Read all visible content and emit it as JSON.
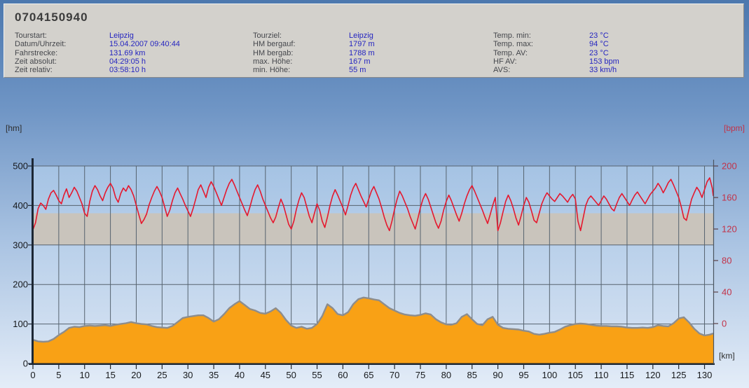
{
  "header": {
    "title": "0704150940",
    "columns": [
      {
        "rows": [
          {
            "label": "Tourstart:",
            "value": "Leipzig"
          },
          {
            "label": "Datum/Uhrzeit:",
            "value": "15.04.2007 09:40:44"
          },
          {
            "label": "Fahrstrecke:",
            "value": "131.69 km"
          },
          {
            "label": "Zeit absolut:",
            "value": "04:29:05 h"
          },
          {
            "label": "Zeit relativ:",
            "value": "03:58:10 h"
          }
        ]
      },
      {
        "rows": [
          {
            "label": "Tourziel:",
            "value": "Leipzig"
          },
          {
            "label": "HM bergauf:",
            "value": "1797 m"
          },
          {
            "label": "HM bergab:",
            "value": "1788 m"
          },
          {
            "label": "max. Höhe:",
            "value": "167 m"
          },
          {
            "label": "min. Höhe:",
            "value": "55 m"
          }
        ]
      },
      {
        "rows": [
          {
            "label": "Temp. min:",
            "value": "23 °C"
          },
          {
            "label": "Temp. max:",
            "value": "94 °C"
          },
          {
            "label": "Temp. AV:",
            "value": "23 °C"
          },
          {
            "label": "HF AV:",
            "value": "153 bpm"
          },
          {
            "label": "AVS:",
            "value": "33 km/h"
          }
        ]
      }
    ]
  },
  "chart_data": {
    "type": "line",
    "title": "",
    "grid": true,
    "x_axis": {
      "label": "[km]",
      "min": 0,
      "max": 131.69,
      "tick_step": 5,
      "tick_max": 130
    },
    "y_left": {
      "label": "[hm]",
      "min": 0,
      "max": 500,
      "tick_step": 100
    },
    "y_right": {
      "label": "[bpm]",
      "min": 0,
      "max": 200,
      "tick_step": 40
    },
    "hr_zone_band": {
      "axis": "right",
      "from_bpm": 100,
      "to_bpm": 140
    },
    "series": [
      {
        "name": "elevation",
        "axis": "left",
        "unit": "m",
        "x_step_km": 1,
        "x_end_km": 131.69,
        "values": [
          60,
          56,
          55,
          56,
          62,
          72,
          80,
          90,
          93,
          92,
          95,
          96,
          95,
          96,
          97,
          95,
          98,
          100,
          102,
          105,
          102,
          100,
          99,
          95,
          92,
          91,
          90,
          95,
          105,
          115,
          118,
          120,
          122,
          122,
          115,
          106,
          112,
          125,
          140,
          150,
          158,
          148,
          138,
          134,
          128,
          126,
          132,
          140,
          128,
          110,
          96,
          90,
          93,
          88,
          90,
          100,
          120,
          150,
          140,
          125,
          122,
          130,
          150,
          163,
          167,
          165,
          162,
          160,
          150,
          140,
          134,
          128,
          124,
          122,
          121,
          123,
          127,
          124,
          112,
          104,
          99,
          98,
          102,
          118,
          125,
          112,
          100,
          97,
          112,
          118,
          98,
          90,
          88,
          87,
          86,
          83,
          81,
          75,
          73,
          75,
          78,
          80,
          86,
          93,
          97,
          100,
          101,
          100,
          98,
          96,
          95,
          95,
          94,
          94,
          93,
          91,
          90,
          90,
          91,
          90,
          92,
          97,
          95,
          94,
          102,
          114,
          117,
          104,
          88,
          76,
          71,
          73,
          76
        ]
      },
      {
        "name": "heart_rate",
        "axis": "right",
        "unit": "bpm",
        "x_step_km": 0.5,
        "x_end_km": 131.69,
        "values": [
          119,
          128,
          146,
          153,
          150,
          145,
          158,
          166,
          169,
          163,
          156,
          152,
          163,
          171,
          160,
          166,
          173,
          168,
          160,
          152,
          140,
          136,
          155,
          168,
          175,
          170,
          162,
          156,
          166,
          173,
          178,
          172,
          160,
          154,
          165,
          172,
          168,
          175,
          170,
          162,
          150,
          138,
          127,
          132,
          139,
          151,
          160,
          168,
          174,
          168,
          160,
          148,
          136,
          144,
          156,
          166,
          172,
          165,
          158,
          150,
          143,
          136,
          146,
          158,
          170,
          176,
          168,
          160,
          173,
          180,
          174,
          166,
          158,
          150,
          160,
          170,
          178,
          183,
          176,
          168,
          160,
          152,
          144,
          137,
          148,
          160,
          170,
          176,
          168,
          158,
          150,
          142,
          134,
          128,
          135,
          147,
          158,
          150,
          138,
          126,
          120,
          130,
          145,
          157,
          166,
          160,
          148,
          136,
          128,
          140,
          152,
          144,
          130,
          122,
          135,
          150,
          162,
          170,
          163,
          155,
          147,
          138,
          150,
          163,
          172,
          178,
          170,
          162,
          155,
          148,
          158,
          168,
          174,
          166,
          158,
          147,
          135,
          125,
          118,
          130,
          145,
          158,
          168,
          162,
          154,
          146,
          136,
          128,
          120,
          133,
          147,
          158,
          165,
          158,
          148,
          138,
          128,
          121,
          130,
          144,
          155,
          163,
          156,
          147,
          138,
          130,
          140,
          152,
          162,
          170,
          175,
          168,
          160,
          152,
          144,
          135,
          127,
          138,
          150,
          160,
          118,
          128,
          142,
          155,
          163,
          156,
          146,
          134,
          125,
          137,
          150,
          160,
          154,
          143,
          131,
          128,
          140,
          152,
          160,
          166,
          162,
          158,
          155,
          160,
          165,
          162,
          158,
          154,
          160,
          164,
          158,
          130,
          118,
          134,
          150,
          158,
          162,
          158,
          154,
          150,
          156,
          162,
          158,
          152,
          146,
          143,
          152,
          160,
          165,
          160,
          155,
          150,
          157,
          163,
          167,
          162,
          157,
          152,
          158,
          164,
          168,
          172,
          178,
          173,
          166,
          172,
          179,
          183,
          176,
          168,
          160,
          148,
          134,
          131,
          145,
          158,
          166,
          173,
          168,
          160,
          170,
          180,
          185,
          172,
          162
        ]
      }
    ],
    "colors": {
      "elevation_fill": "#f9a115",
      "elevation_stroke": "#8d8d8d",
      "heart_rate": "#e5182e",
      "grid": "#56636f",
      "band": "#c9c4bc",
      "axis": "#1c2734",
      "tick_label": "#17191c",
      "bpm_label": "#c23349",
      "plot_bg_top": "#a5c3e4",
      "plot_bg_bottom": "#d8e4f3"
    }
  }
}
